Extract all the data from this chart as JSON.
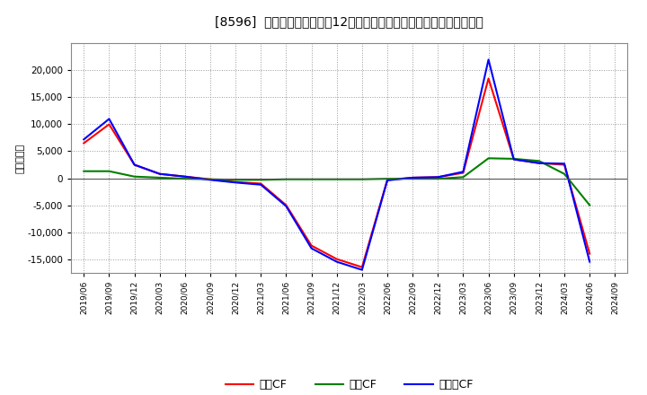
{
  "title": "[8596]  キャッシュフローの12か月移動合計の対前年同期増減額の推移",
  "ylabel": "（百万円）",
  "background_color": "#ffffff",
  "plot_bg_color": "#ffffff",
  "grid_color": "#999999",
  "x_labels": [
    "2019/06",
    "2019/09",
    "2019/12",
    "2020/03",
    "2020/06",
    "2020/09",
    "2020/12",
    "2021/03",
    "2021/06",
    "2021/09",
    "2021/12",
    "2022/03",
    "2022/06",
    "2022/09",
    "2022/12",
    "2023/03",
    "2023/06",
    "2023/09",
    "2023/12",
    "2024/03",
    "2024/06",
    "2024/09"
  ],
  "operating_cf": [
    6500,
    10000,
    2500,
    800,
    300,
    -200,
    -700,
    -1000,
    -5000,
    -12500,
    -15000,
    -16500,
    -300,
    100,
    200,
    1000,
    18500,
    3500,
    2800,
    2500,
    -14000,
    null
  ],
  "investing_cf": [
    1300,
    1300,
    300,
    100,
    -100,
    -200,
    -300,
    -300,
    -200,
    -200,
    -200,
    -200,
    -100,
    -100,
    -100,
    200,
    3700,
    3600,
    3200,
    800,
    -5000,
    null
  ],
  "free_cf": [
    7200,
    11000,
    2500,
    800,
    300,
    -300,
    -800,
    -1200,
    -5200,
    -13000,
    -15500,
    -17000,
    -400,
    100,
    200,
    1200,
    22000,
    3500,
    2800,
    2700,
    -15500,
    null
  ],
  "operating_color": "#ff0000",
  "investing_color": "#008000",
  "free_color": "#0000ff",
  "ylim": [
    -17500,
    25000
  ],
  "yticks": [
    -15000,
    -10000,
    -5000,
    0,
    5000,
    10000,
    15000,
    20000
  ],
  "legend_labels": [
    "営業CF",
    "投資CF",
    "フリーCF"
  ]
}
